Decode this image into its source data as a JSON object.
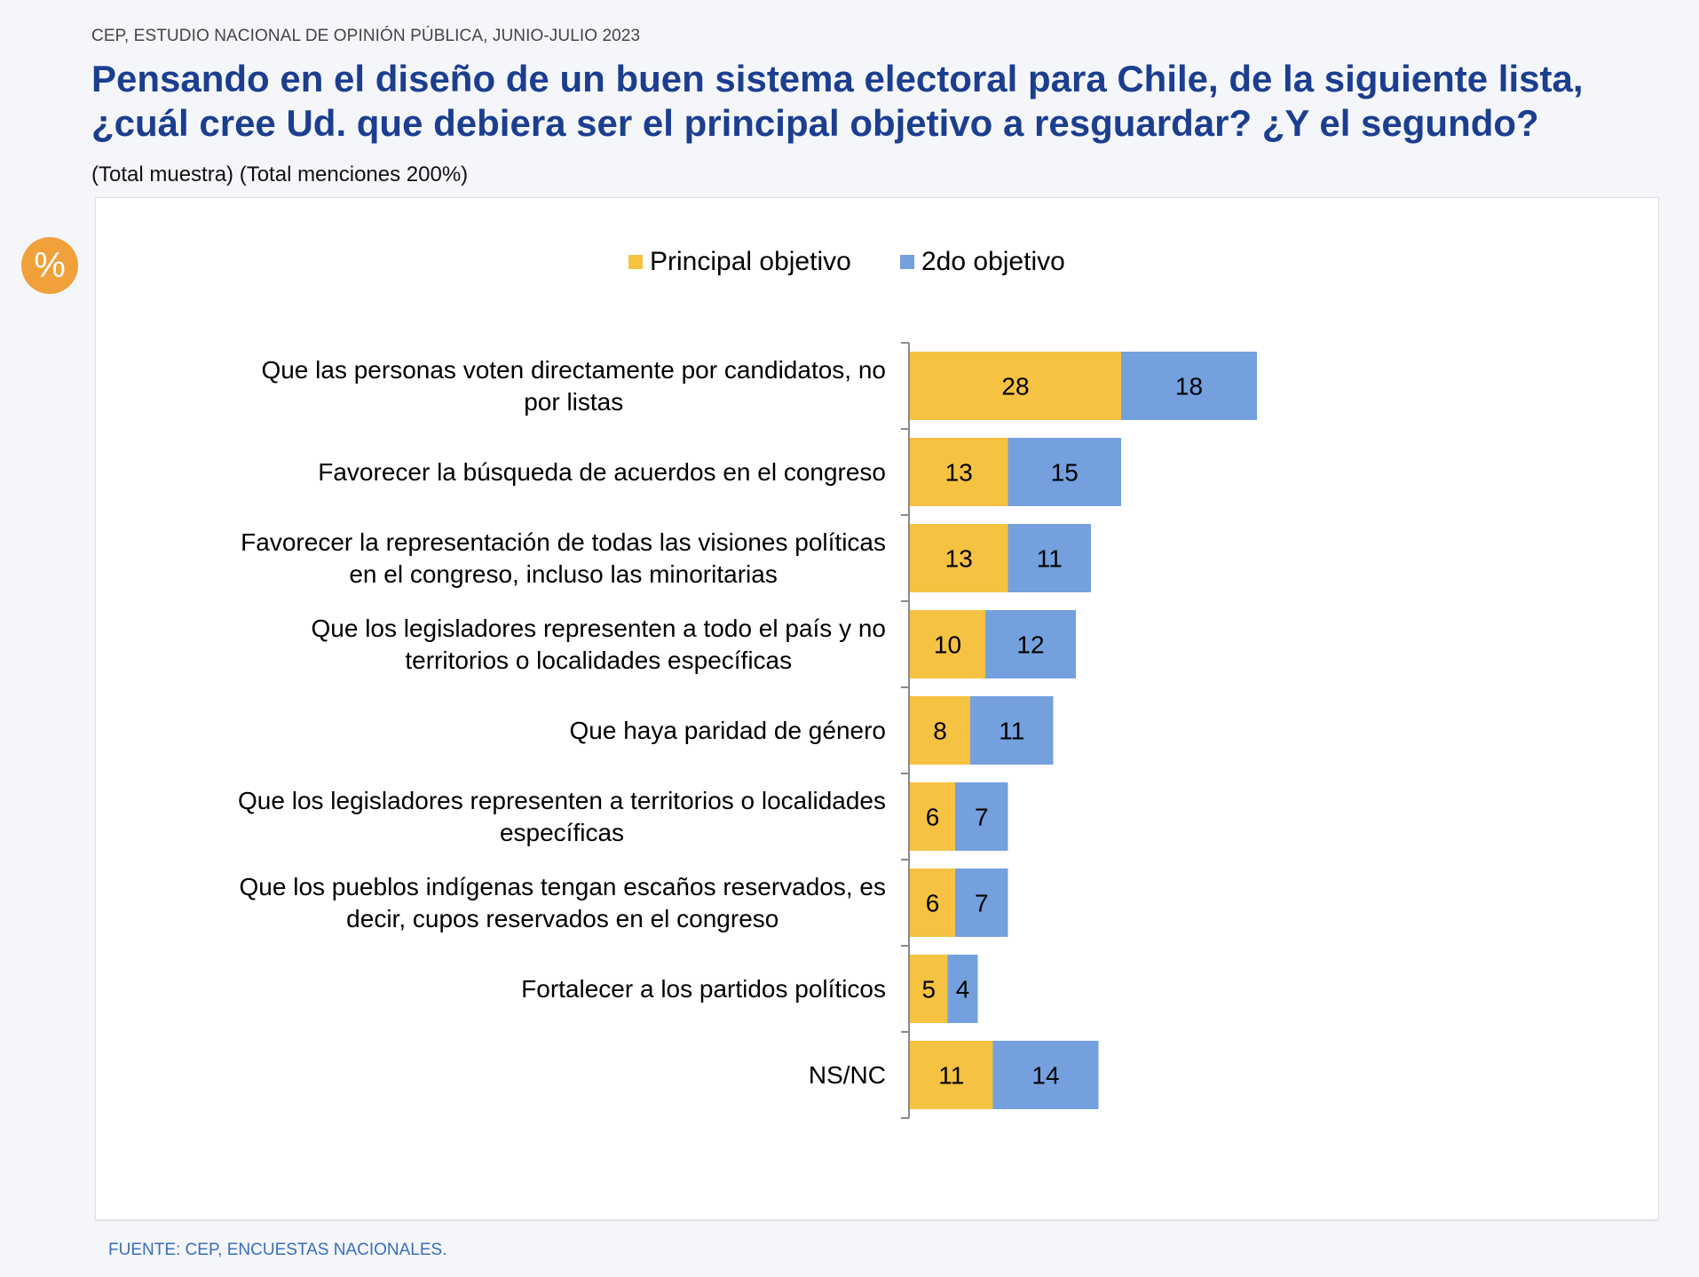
{
  "header": {
    "source_line": "CEP, ESTUDIO NACIONAL DE OPINIÓN PÚBLICA, JUNIO-JULIO 2023",
    "title_line1": "Pensando en el diseño de un buen sistema electoral para Chile, de la siguiente lista,",
    "title_line2": "¿cuál cree Ud. que debiera ser el principal objetivo a resguardar? ¿Y el segundo?",
    "subtitle": "(Total muestra) (Total menciones 200%)"
  },
  "badge": {
    "icon": "percent-icon",
    "symbol": "%",
    "color": "#f0a13b"
  },
  "footer": {
    "source": "FUENTE: CEP, ENCUESTAS NACIONALES."
  },
  "colors": {
    "principal": "#f5c242",
    "segundo": "#74a0de",
    "axis": "#8a8a8a"
  },
  "chart_data": {
    "type": "bar",
    "orientation": "horizontal",
    "stacked": true,
    "title": "Pensando en el diseño de un buen sistema electoral para Chile, de la siguiente lista, ¿cuál cree Ud. que debiera ser el principal objetivo a resguardar? ¿Y el segundo?",
    "subtitle": "(Total muestra) (Total menciones 200%)",
    "unit": "%",
    "xlabel": "",
    "ylabel": "",
    "grid": false,
    "legend_position": "top-center",
    "categories": [
      [
        "Que las personas voten directamente por candidatos, no",
        "por listas"
      ],
      [
        "Favorecer la búsqueda de acuerdos en el congreso"
      ],
      [
        "Favorecer la representación de todas las visiones políticas",
        "en el congreso, incluso las minoritarias"
      ],
      [
        "Que los legisladores representen a todo el país y no",
        "territorios o localidades específicas"
      ],
      [
        "Que haya paridad de género"
      ],
      [
        "Que los legisladores representen a territorios o localidades",
        "específicas"
      ],
      [
        "Que los pueblos indígenas tengan escaños reservados, es",
        "decir, cupos reservados en el congreso"
      ],
      [
        "Fortalecer a los partidos políticos"
      ],
      [
        "NS/NC"
      ]
    ],
    "series": [
      {
        "name": "Principal objetivo",
        "color": "#f5c242",
        "values": [
          28,
          13,
          13,
          10,
          8,
          6,
          6,
          5,
          11
        ]
      },
      {
        "name": "2do objetivo",
        "color": "#74a0de",
        "values": [
          18,
          15,
          11,
          12,
          11,
          7,
          7,
          4,
          14
        ]
      }
    ]
  }
}
